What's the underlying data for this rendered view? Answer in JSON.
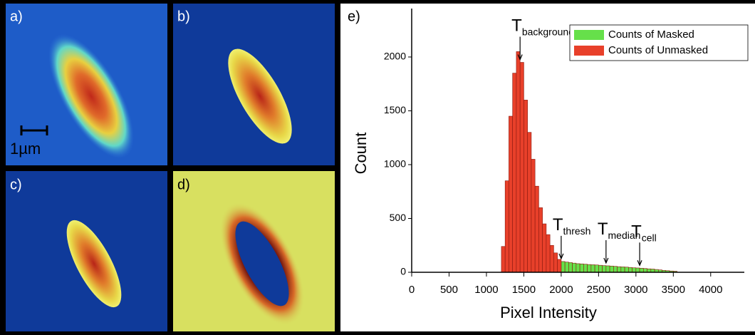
{
  "panels": [
    {
      "label": "a)"
    },
    {
      "label": "b)"
    },
    {
      "label": "c)"
    },
    {
      "label": "d)"
    }
  ],
  "scale_bar": "1µm",
  "chart_data": {
    "type": "histogram",
    "panel_label": "e)",
    "x_label": "Pixel Intensity",
    "y_label": "Count",
    "bins": [
      1200,
      1250,
      1300,
      1350,
      1400,
      1450,
      1500,
      1550,
      1600,
      1650,
      1700,
      1750,
      1800,
      1850,
      1900,
      1950,
      2000,
      2050,
      2100,
      2150,
      2200,
      2250,
      2300,
      2350,
      2400,
      2450,
      2500,
      2550,
      2600,
      2650,
      2700,
      2750,
      2800,
      2850,
      2900,
      2950,
      3000,
      3050,
      3100,
      3150,
      3200,
      3250,
      3300,
      3350,
      3400,
      3450,
      3500,
      3550
    ],
    "series": [
      {
        "name": "Counts of Masked",
        "color": "#66e04a",
        "values": [
          null,
          null,
          null,
          null,
          null,
          null,
          null,
          null,
          null,
          null,
          null,
          null,
          null,
          null,
          null,
          null,
          100,
          95,
          90,
          85,
          80,
          78,
          75,
          72,
          70,
          68,
          65,
          62,
          60,
          58,
          55,
          52,
          50,
          48,
          45,
          42,
          40,
          38,
          35,
          32,
          30,
          26,
          22,
          18,
          15,
          12,
          10
        ]
      },
      {
        "name": "Counts of Unmasked",
        "color": "#e8402a",
        "values": [
          240,
          850,
          1450,
          1850,
          2050,
          1950,
          1600,
          1300,
          1050,
          800,
          600,
          450,
          350,
          250,
          180,
          120,
          null,
          null,
          null,
          null,
          null,
          null,
          null,
          null,
          null,
          null,
          null,
          null,
          null,
          null,
          null,
          null,
          null,
          null,
          null,
          null,
          null,
          null,
          null,
          null,
          null,
          null,
          null,
          null,
          null,
          null,
          null
        ]
      }
    ],
    "xlim": [
      0,
      4450
    ],
    "ylim": [
      0,
      2450
    ],
    "xticks": [
      0,
      500,
      1000,
      1500,
      2000,
      2500,
      3000,
      3500,
      4000
    ],
    "yticks": [
      0,
      500,
      1000,
      1500,
      2000
    ],
    "legend": "upper right",
    "annotations": [
      {
        "text": "T",
        "sub": "background",
        "x": 1450
      },
      {
        "text": "T",
        "sub": "thresh",
        "x": 2000
      },
      {
        "text": "T",
        "sub": "median",
        "x": 2600
      },
      {
        "text": "T",
        "sub": "cell",
        "x": 3050
      }
    ]
  }
}
